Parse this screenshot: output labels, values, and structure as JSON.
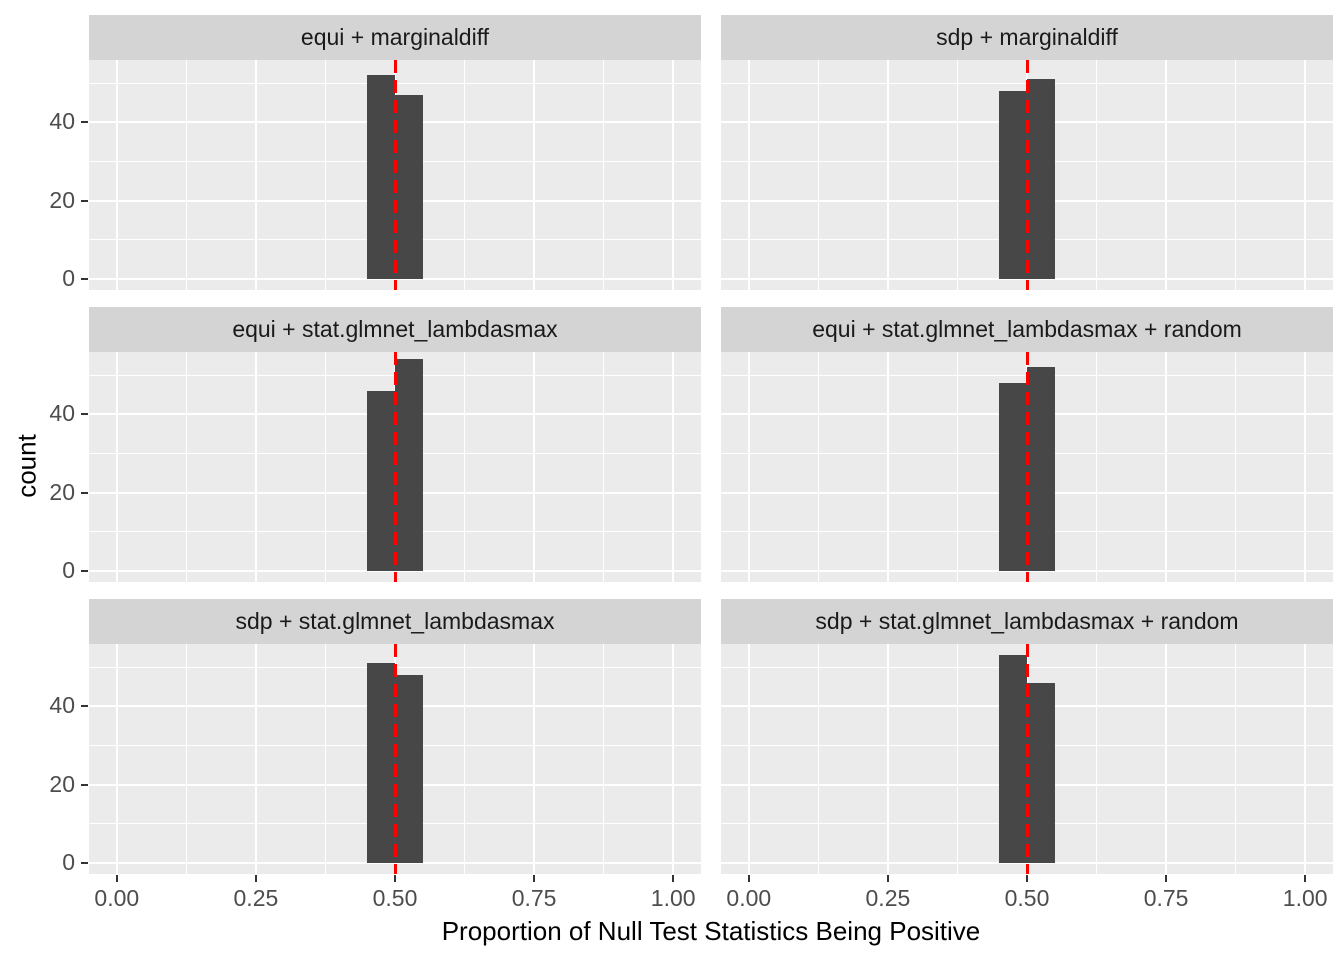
{
  "chart_data": {
    "type": "bar",
    "subtype": "faceted_histogram",
    "xlabel": "Proportion of Null Test Statistics Being Positive",
    "ylabel": "count",
    "x_ticks": [
      "0.00",
      "0.25",
      "0.50",
      "0.75",
      "1.00"
    ],
    "x_tick_values": [
      0,
      0.25,
      0.5,
      0.75,
      1.0
    ],
    "y_ticks": [
      "0",
      "20",
      "40"
    ],
    "y_tick_values": [
      0,
      20,
      40
    ],
    "x_minor": [
      0.125,
      0.375,
      0.625,
      0.875
    ],
    "y_minor": [
      10,
      30,
      50
    ],
    "x_range": [
      -0.05,
      1.05
    ],
    "y_range": [
      -2.8,
      55.9
    ],
    "binwidth": 0.05,
    "vline_x": 0.5,
    "grid": "on",
    "legend": "none",
    "facets": [
      {
        "title": "equi + marginaldiff",
        "bars": [
          {
            "x0": 0.45,
            "x1": 0.5,
            "count": 52
          },
          {
            "x0": 0.5,
            "x1": 0.55,
            "count": 47
          }
        ]
      },
      {
        "title": "sdp + marginaldiff",
        "bars": [
          {
            "x0": 0.45,
            "x1": 0.5,
            "count": 48
          },
          {
            "x0": 0.5,
            "x1": 0.55,
            "count": 51
          }
        ]
      },
      {
        "title": "equi + stat.glmnet_lambdasmax",
        "bars": [
          {
            "x0": 0.45,
            "x1": 0.5,
            "count": 46
          },
          {
            "x0": 0.5,
            "x1": 0.55,
            "count": 54
          }
        ]
      },
      {
        "title": "equi + stat.glmnet_lambdasmax + random",
        "bars": [
          {
            "x0": 0.45,
            "x1": 0.5,
            "count": 48
          },
          {
            "x0": 0.5,
            "x1": 0.55,
            "count": 52
          }
        ]
      },
      {
        "title": "sdp + stat.glmnet_lambdasmax",
        "bars": [
          {
            "x0": 0.45,
            "x1": 0.5,
            "count": 51
          },
          {
            "x0": 0.5,
            "x1": 0.55,
            "count": 48
          }
        ]
      },
      {
        "title": "sdp + stat.glmnet_lambdasmax + random",
        "bars": [
          {
            "x0": 0.45,
            "x1": 0.5,
            "count": 53
          },
          {
            "x0": 0.5,
            "x1": 0.55,
            "count": 46
          }
        ]
      }
    ]
  },
  "style": {
    "background": "#FFFFFF",
    "panel_bg": "#EBEBEB",
    "strip_bg": "#D4D4D4",
    "bar_fill": "#474747",
    "vline_color": "#FF0000",
    "grid_color": "#FFFFFF",
    "tick_color": "#333333",
    "tick_label_color": "#4D4D4D",
    "axis_title_color": "#000000"
  }
}
